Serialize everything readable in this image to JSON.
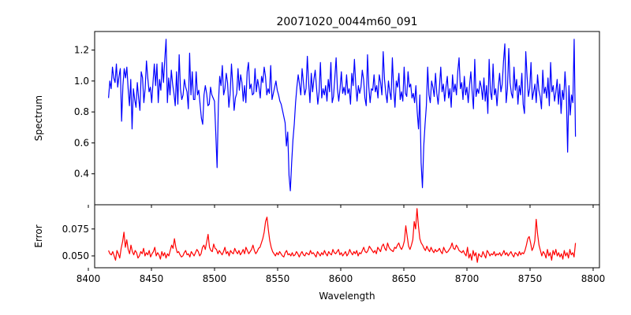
{
  "chart_data": [
    {
      "type": "line",
      "panel": "top",
      "title": "20071020_0044m60_091",
      "xlabel": "",
      "ylabel": "Spectrum",
      "xlim": [
        8405,
        8805
      ],
      "ylim": [
        0.2,
        1.32
      ],
      "xticks": [
        8400,
        8450,
        8500,
        8550,
        8600,
        8650,
        8700,
        8750,
        8800
      ],
      "xticklabels_visible": false,
      "yticks": [
        0.4,
        0.6,
        0.8,
        1.0,
        1.2
      ],
      "yticklabels": [
        "0.4",
        "0.6",
        "0.8",
        "1.0",
        "1.2"
      ],
      "grid": false,
      "color": "#0000ff",
      "x_range": [
        8416,
        8786
      ],
      "series": [
        {
          "values": [
            0.89,
            1.0,
            0.95,
            1.09,
            1.02,
            0.99,
            1.11,
            0.96,
            1.03,
            1.08,
            0.74,
            0.97,
            1.08,
            1.02,
            1.09,
            0.95,
            0.84,
            1.01,
            0.69,
            0.95,
            0.88,
            0.83,
            0.99,
            0.89,
            0.81,
            1.06,
            1.02,
            0.86,
            0.95,
            1.13,
            1.02,
            0.93,
            0.96,
            0.86,
            0.99,
            1.11,
            0.97,
            1.11,
            0.86,
            1.01,
            0.94,
            1.12,
            0.99,
            1.14,
            1.27,
            0.86,
            1.02,
            0.91,
            1.07,
            0.98,
            0.92,
            0.84,
            1.06,
            0.85,
            1.17,
            0.95,
            0.88,
            0.91,
            1.01,
            0.96,
            0.93,
            0.82,
            1.18,
            0.91,
            1.06,
            0.88,
            0.88,
            1.06,
            0.91,
            0.94,
            0.85,
            0.76,
            0.72,
            0.91,
            0.97,
            0.92,
            0.84,
            0.85,
            0.96,
            0.91,
            0.89,
            0.87,
            0.66,
            0.44,
            0.85,
            1.03,
            0.97,
            1.1,
            0.91,
            0.95,
            1.05,
            0.99,
            0.83,
            0.92,
            1.11,
            0.97,
            0.81,
            0.89,
            0.92,
            1.08,
            0.94,
            1.04,
            0.99,
            0.87,
            0.97,
            0.86,
            1.06,
            1.12,
            0.95,
            0.98,
            0.91,
            0.92,
            1.08,
            0.93,
            1.01,
            0.96,
            0.89,
            1.03,
            0.99,
            1.09,
            1.03,
            0.91,
            0.95,
            0.92,
            1.1,
            0.88,
            0.92,
            0.96,
            1.0,
            0.94,
            0.91,
            0.87,
            0.85,
            0.81,
            0.77,
            0.73,
            0.58,
            0.67,
            0.39,
            0.29,
            0.47,
            0.62,
            0.72,
            0.86,
            0.96,
            1.04,
            0.98,
            0.91,
            1.08,
            0.99,
            0.91,
            0.95,
            1.16,
            0.99,
            0.86,
            1.05,
            0.93,
            1.01,
            1.07,
            0.96,
            0.85,
            0.93,
            1.12,
            0.89,
            0.95,
            0.91,
            0.97,
            0.87,
            1.01,
            0.93,
            1.12,
            0.86,
            0.9,
            1.02,
            1.15,
            0.95,
            0.87,
            0.95,
            1.06,
            0.92,
            0.96,
            0.91,
            1.04,
            0.92,
            0.95,
            0.85,
            1.05,
            0.97,
            1.14,
            0.98,
            0.87,
            0.97,
            0.92,
            0.96,
            1.07,
            1.01,
            0.89,
            0.84,
            1.17,
            0.96,
            0.86,
            0.95,
            0.94,
            1.04,
            0.93,
            0.97,
            0.89,
            1.04,
            0.99,
            0.91,
            1.19,
            1.01,
            0.92,
            0.86,
            1.0,
            0.93,
            0.88,
            1.15,
            0.95,
            0.83,
            1.0,
            0.96,
            1.05,
            0.88,
            0.93,
            0.87,
            1.09,
            0.92,
            0.9,
            1.06,
            0.96,
            0.98,
            0.89,
            0.92,
            0.86,
            0.97,
            0.8,
            0.69,
            0.91,
            0.47,
            0.31,
            0.58,
            0.72,
            0.84,
            1.09,
            0.91,
            0.86,
            1.0,
            0.96,
            0.9,
            1.05,
            0.92,
            0.85,
            0.96,
            1.09,
            0.93,
            0.98,
            0.87,
            0.96,
            1.03,
            0.89,
            0.95,
            0.83,
            1.04,
            0.93,
            0.98,
            0.91,
            1.06,
            1.15,
            0.95,
            0.99,
            0.88,
            1.03,
            0.91,
            0.96,
            0.86,
            0.97,
            1.06,
            0.93,
            0.82,
            1.14,
            0.9,
            0.95,
            0.92,
            1.0,
            0.96,
            0.88,
            1.02,
            0.87,
            0.97,
            0.79,
            1.14,
            0.93,
            0.88,
            1.11,
            0.91,
            0.95,
            0.84,
            0.96,
            1.05,
            0.93,
            0.98,
            1.13,
            1.24,
            0.86,
            0.95,
            1.21,
            0.99,
            0.92,
            0.89,
            1.09,
            0.94,
            1.01,
            0.85,
            0.97,
            0.91,
            1.05,
            0.85,
            0.79,
            1.19,
            1.03,
            0.9,
            0.95,
            1.12,
            0.88,
            0.93,
            0.98,
            0.86,
            1.04,
            0.94,
            0.9,
            0.82,
            1.07,
            0.92,
            0.96,
            0.89,
            1.02,
            0.84,
            1.12,
            0.93,
            0.97,
            0.87,
            0.93,
            1.01,
            0.85,
            0.98,
            0.79,
            0.94,
            0.88,
            1.06,
            0.92,
            0.54,
            0.97,
            0.78,
            0.91,
            0.86,
            1.27,
            0.64
          ]
        }
      ]
    },
    {
      "type": "line",
      "panel": "bottom",
      "xlabel": "Wavelength",
      "ylabel": "Error",
      "xlim": [
        8405,
        8805
      ],
      "ylim": [
        0.039,
        0.0975
      ],
      "xticks": [
        8400,
        8450,
        8500,
        8550,
        8600,
        8650,
        8700,
        8750,
        8800
      ],
      "xticklabels": [
        "8400",
        "8450",
        "8500",
        "8550",
        "8600",
        "8650",
        "8700",
        "8750",
        "8800"
      ],
      "yticks": [
        0.05,
        0.075
      ],
      "yticklabels": [
        "0.050",
        "0.075"
      ],
      "grid": false,
      "color": "#ff0000",
      "x_range": [
        8416,
        8786
      ],
      "series": [
        {
          "values": [
            0.055,
            0.052,
            0.051,
            0.054,
            0.05,
            0.046,
            0.055,
            0.052,
            0.048,
            0.057,
            0.063,
            0.072,
            0.058,
            0.065,
            0.056,
            0.052,
            0.06,
            0.054,
            0.051,
            0.055,
            0.053,
            0.048,
            0.05,
            0.054,
            0.052,
            0.057,
            0.05,
            0.053,
            0.051,
            0.055,
            0.049,
            0.052,
            0.054,
            0.058,
            0.05,
            0.053,
            0.051,
            0.047,
            0.054,
            0.05,
            0.053,
            0.048,
            0.052,
            0.05,
            0.055,
            0.06,
            0.057,
            0.066,
            0.058,
            0.053,
            0.054,
            0.051,
            0.049,
            0.05,
            0.053,
            0.055,
            0.051,
            0.052,
            0.049,
            0.054,
            0.052,
            0.05,
            0.053,
            0.056,
            0.054,
            0.05,
            0.052,
            0.058,
            0.06,
            0.056,
            0.063,
            0.07,
            0.058,
            0.055,
            0.054,
            0.061,
            0.057,
            0.056,
            0.052,
            0.055,
            0.053,
            0.051,
            0.054,
            0.058,
            0.052,
            0.054,
            0.05,
            0.055,
            0.053,
            0.052,
            0.057,
            0.054,
            0.052,
            0.055,
            0.051,
            0.053,
            0.056,
            0.052,
            0.058,
            0.055,
            0.052,
            0.054,
            0.056,
            0.06,
            0.055,
            0.052,
            0.054,
            0.057,
            0.058,
            0.062,
            0.066,
            0.072,
            0.082,
            0.086,
            0.074,
            0.064,
            0.058,
            0.054,
            0.052,
            0.05,
            0.053,
            0.051,
            0.054,
            0.052,
            0.05,
            0.049,
            0.053,
            0.055,
            0.051,
            0.052,
            0.05,
            0.053,
            0.05,
            0.051,
            0.054,
            0.052,
            0.049,
            0.052,
            0.054,
            0.051,
            0.05,
            0.053,
            0.052,
            0.051,
            0.055,
            0.052,
            0.053,
            0.051,
            0.049,
            0.054,
            0.052,
            0.05,
            0.053,
            0.051,
            0.055,
            0.052,
            0.05,
            0.054,
            0.052,
            0.051,
            0.056,
            0.053,
            0.052,
            0.054,
            0.056,
            0.051,
            0.053,
            0.05,
            0.052,
            0.054,
            0.05,
            0.052,
            0.056,
            0.053,
            0.051,
            0.054,
            0.052,
            0.055,
            0.05,
            0.053,
            0.052,
            0.055,
            0.058,
            0.054,
            0.053,
            0.055,
            0.059,
            0.057,
            0.055,
            0.053,
            0.055,
            0.052,
            0.058,
            0.056,
            0.054,
            0.059,
            0.061,
            0.057,
            0.055,
            0.062,
            0.058,
            0.056,
            0.055,
            0.054,
            0.058,
            0.057,
            0.06,
            0.062,
            0.058,
            0.056,
            0.059,
            0.064,
            0.078,
            0.068,
            0.059,
            0.056,
            0.06,
            0.065,
            0.082,
            0.075,
            0.094,
            0.078,
            0.066,
            0.062,
            0.06,
            0.057,
            0.055,
            0.059,
            0.056,
            0.054,
            0.058,
            0.055,
            0.053,
            0.056,
            0.054,
            0.055,
            0.057,
            0.054,
            0.052,
            0.058,
            0.055,
            0.053,
            0.054,
            0.056,
            0.058,
            0.062,
            0.057,
            0.056,
            0.06,
            0.058,
            0.055,
            0.054,
            0.053,
            0.055,
            0.052,
            0.05,
            0.058,
            0.048,
            0.052,
            0.046,
            0.055,
            0.05,
            0.053,
            0.044,
            0.052,
            0.05,
            0.049,
            0.054,
            0.051,
            0.048,
            0.055,
            0.053,
            0.05,
            0.052,
            0.051,
            0.054,
            0.05,
            0.052,
            0.051,
            0.053,
            0.05,
            0.052,
            0.055,
            0.051,
            0.053,
            0.05,
            0.052,
            0.054,
            0.051,
            0.049,
            0.053,
            0.052,
            0.05,
            0.054,
            0.051,
            0.053,
            0.052,
            0.055,
            0.06,
            0.066,
            0.068,
            0.062,
            0.055,
            0.058,
            0.064,
            0.084,
            0.07,
            0.06,
            0.055,
            0.05,
            0.054,
            0.052,
            0.048,
            0.056,
            0.05,
            0.053,
            0.046,
            0.055,
            0.051,
            0.056,
            0.05,
            0.053,
            0.049,
            0.052,
            0.047,
            0.055,
            0.05,
            0.053,
            0.048,
            0.056,
            0.051,
            0.053,
            0.049,
            0.062
          ]
        }
      ]
    }
  ]
}
